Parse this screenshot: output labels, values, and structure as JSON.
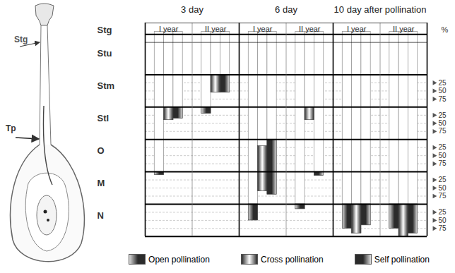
{
  "illustration": {
    "stigma_label": "Stg",
    "tube_label": "Tp"
  },
  "chart_data": {
    "type": "bar",
    "zones": [
      "Stg",
      "Stu",
      "Stm",
      "Stl",
      "O",
      "M",
      "N"
    ],
    "ticked_zones": [
      "Stm",
      "Stl",
      "O",
      "M",
      "N"
    ],
    "zone_ticks": [
      25,
      50,
      75
    ],
    "unit_label": "%",
    "grid": true,
    "series": [
      {
        "name": "Open pollination",
        "color": "#2b2b2b"
      },
      {
        "name": "Cross pollination",
        "color": "#2b2b2b"
      },
      {
        "name": "Self pollination",
        "color": "#2b2b2b"
      }
    ],
    "columns": [
      {
        "day": "3 day",
        "year": "I year",
        "bars": [
          {
            "series": "Open pollination",
            "zone_from": "M",
            "from": 0,
            "zone_to": "M",
            "to": 10
          },
          {
            "series": "Cross pollination",
            "zone_from": "Stl",
            "from": 0,
            "zone_to": "Stl",
            "to": 40
          },
          {
            "series": "Self pollination",
            "zone_from": "Stl",
            "from": 0,
            "zone_to": "Stl",
            "to": 35
          }
        ]
      },
      {
        "day": "3 day",
        "year": "II year",
        "bars": [
          {
            "series": "Open pollination",
            "zone_from": "Stl",
            "from": 0,
            "zone_to": "Stl",
            "to": 20
          },
          {
            "series": "Cross pollination",
            "zone_from": "Stm",
            "from": 0,
            "zone_to": "Stm",
            "to": 55
          },
          {
            "series": "Self pollination",
            "zone_from": "Stm",
            "from": 0,
            "zone_to": "Stm",
            "to": 55
          }
        ]
      },
      {
        "day": "6 day",
        "year": "I year",
        "bars": [
          {
            "series": "Open pollination",
            "zone_from": "N",
            "from": 0,
            "zone_to": "N",
            "to": 50
          },
          {
            "series": "Cross pollination",
            "zone_from": "O",
            "from": 20,
            "zone_to": "M",
            "to": 60
          },
          {
            "series": "Self pollination",
            "zone_from": "O",
            "from": 0,
            "zone_to": "M",
            "to": 70
          }
        ]
      },
      {
        "day": "6 day",
        "year": "II year",
        "bars": [
          {
            "series": "Open pollination",
            "zone_from": "N",
            "from": 0,
            "zone_to": "N",
            "to": 15
          },
          {
            "series": "Cross pollination",
            "zone_from": "Stl",
            "from": 0,
            "zone_to": "Stl",
            "to": 40
          },
          {
            "series": "Self pollination",
            "zone_from": "M",
            "from": 0,
            "zone_to": "M",
            "to": 12
          }
        ]
      },
      {
        "day": "10 day after pollination",
        "year": "I year",
        "bars": [
          {
            "series": "Open pollination",
            "zone_from": "N",
            "from": 0,
            "zone_to": "N",
            "to": 75
          },
          {
            "series": "Cross pollination",
            "zone_from": "N",
            "from": 0,
            "zone_to": "N",
            "to": 90
          },
          {
            "series": "Self pollination",
            "zone_from": "N",
            "from": 0,
            "zone_to": "N",
            "to": 65
          }
        ]
      },
      {
        "day": "10 day after pollination",
        "year": "II year",
        "bars": [
          {
            "series": "Open pollination",
            "zone_from": "N",
            "from": 0,
            "zone_to": "N",
            "to": 75
          },
          {
            "series": "Cross pollination",
            "zone_from": "N",
            "from": 0,
            "zone_to": "N",
            "to": 100
          },
          {
            "series": "Self pollination",
            "zone_from": "N",
            "from": 0,
            "zone_to": "N",
            "to": 90
          }
        ]
      }
    ]
  }
}
